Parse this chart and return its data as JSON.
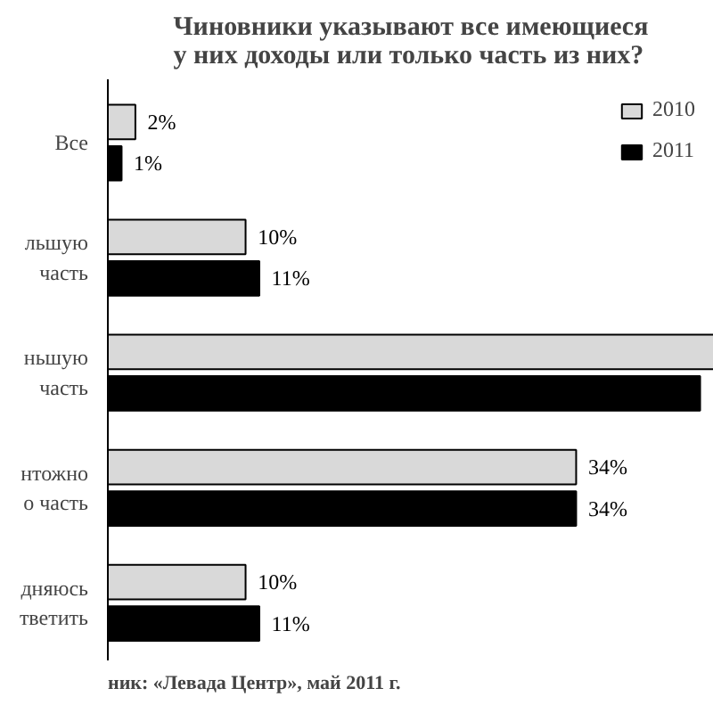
{
  "chart_data": {
    "type": "bar",
    "orientation": "horizontal",
    "title": "Чиновники указывают все имеющиеся\nу них доходы или только часть из них?",
    "categories": [
      "Все",
      "льшую\nчасть",
      "ньшую\nчасть",
      "нтожно\nо часть",
      "дняюсь\nтветить"
    ],
    "series": [
      {
        "name": "2010",
        "color": "#d9d9d9",
        "values": [
          2,
          10,
          44,
          34,
          10
        ],
        "value_labels": [
          "2%",
          "10%",
          null,
          "34%",
          "10%"
        ]
      },
      {
        "name": "2011",
        "color": "#000000",
        "values": [
          1,
          11,
          43,
          34,
          11
        ],
        "value_labels": [
          "1%",
          "11%",
          null,
          "34%",
          "11%"
        ]
      }
    ],
    "legend": "top right",
    "grid": false,
    "annotations": [
      "ник: «Левада Центр», май 2011 г."
    ]
  }
}
